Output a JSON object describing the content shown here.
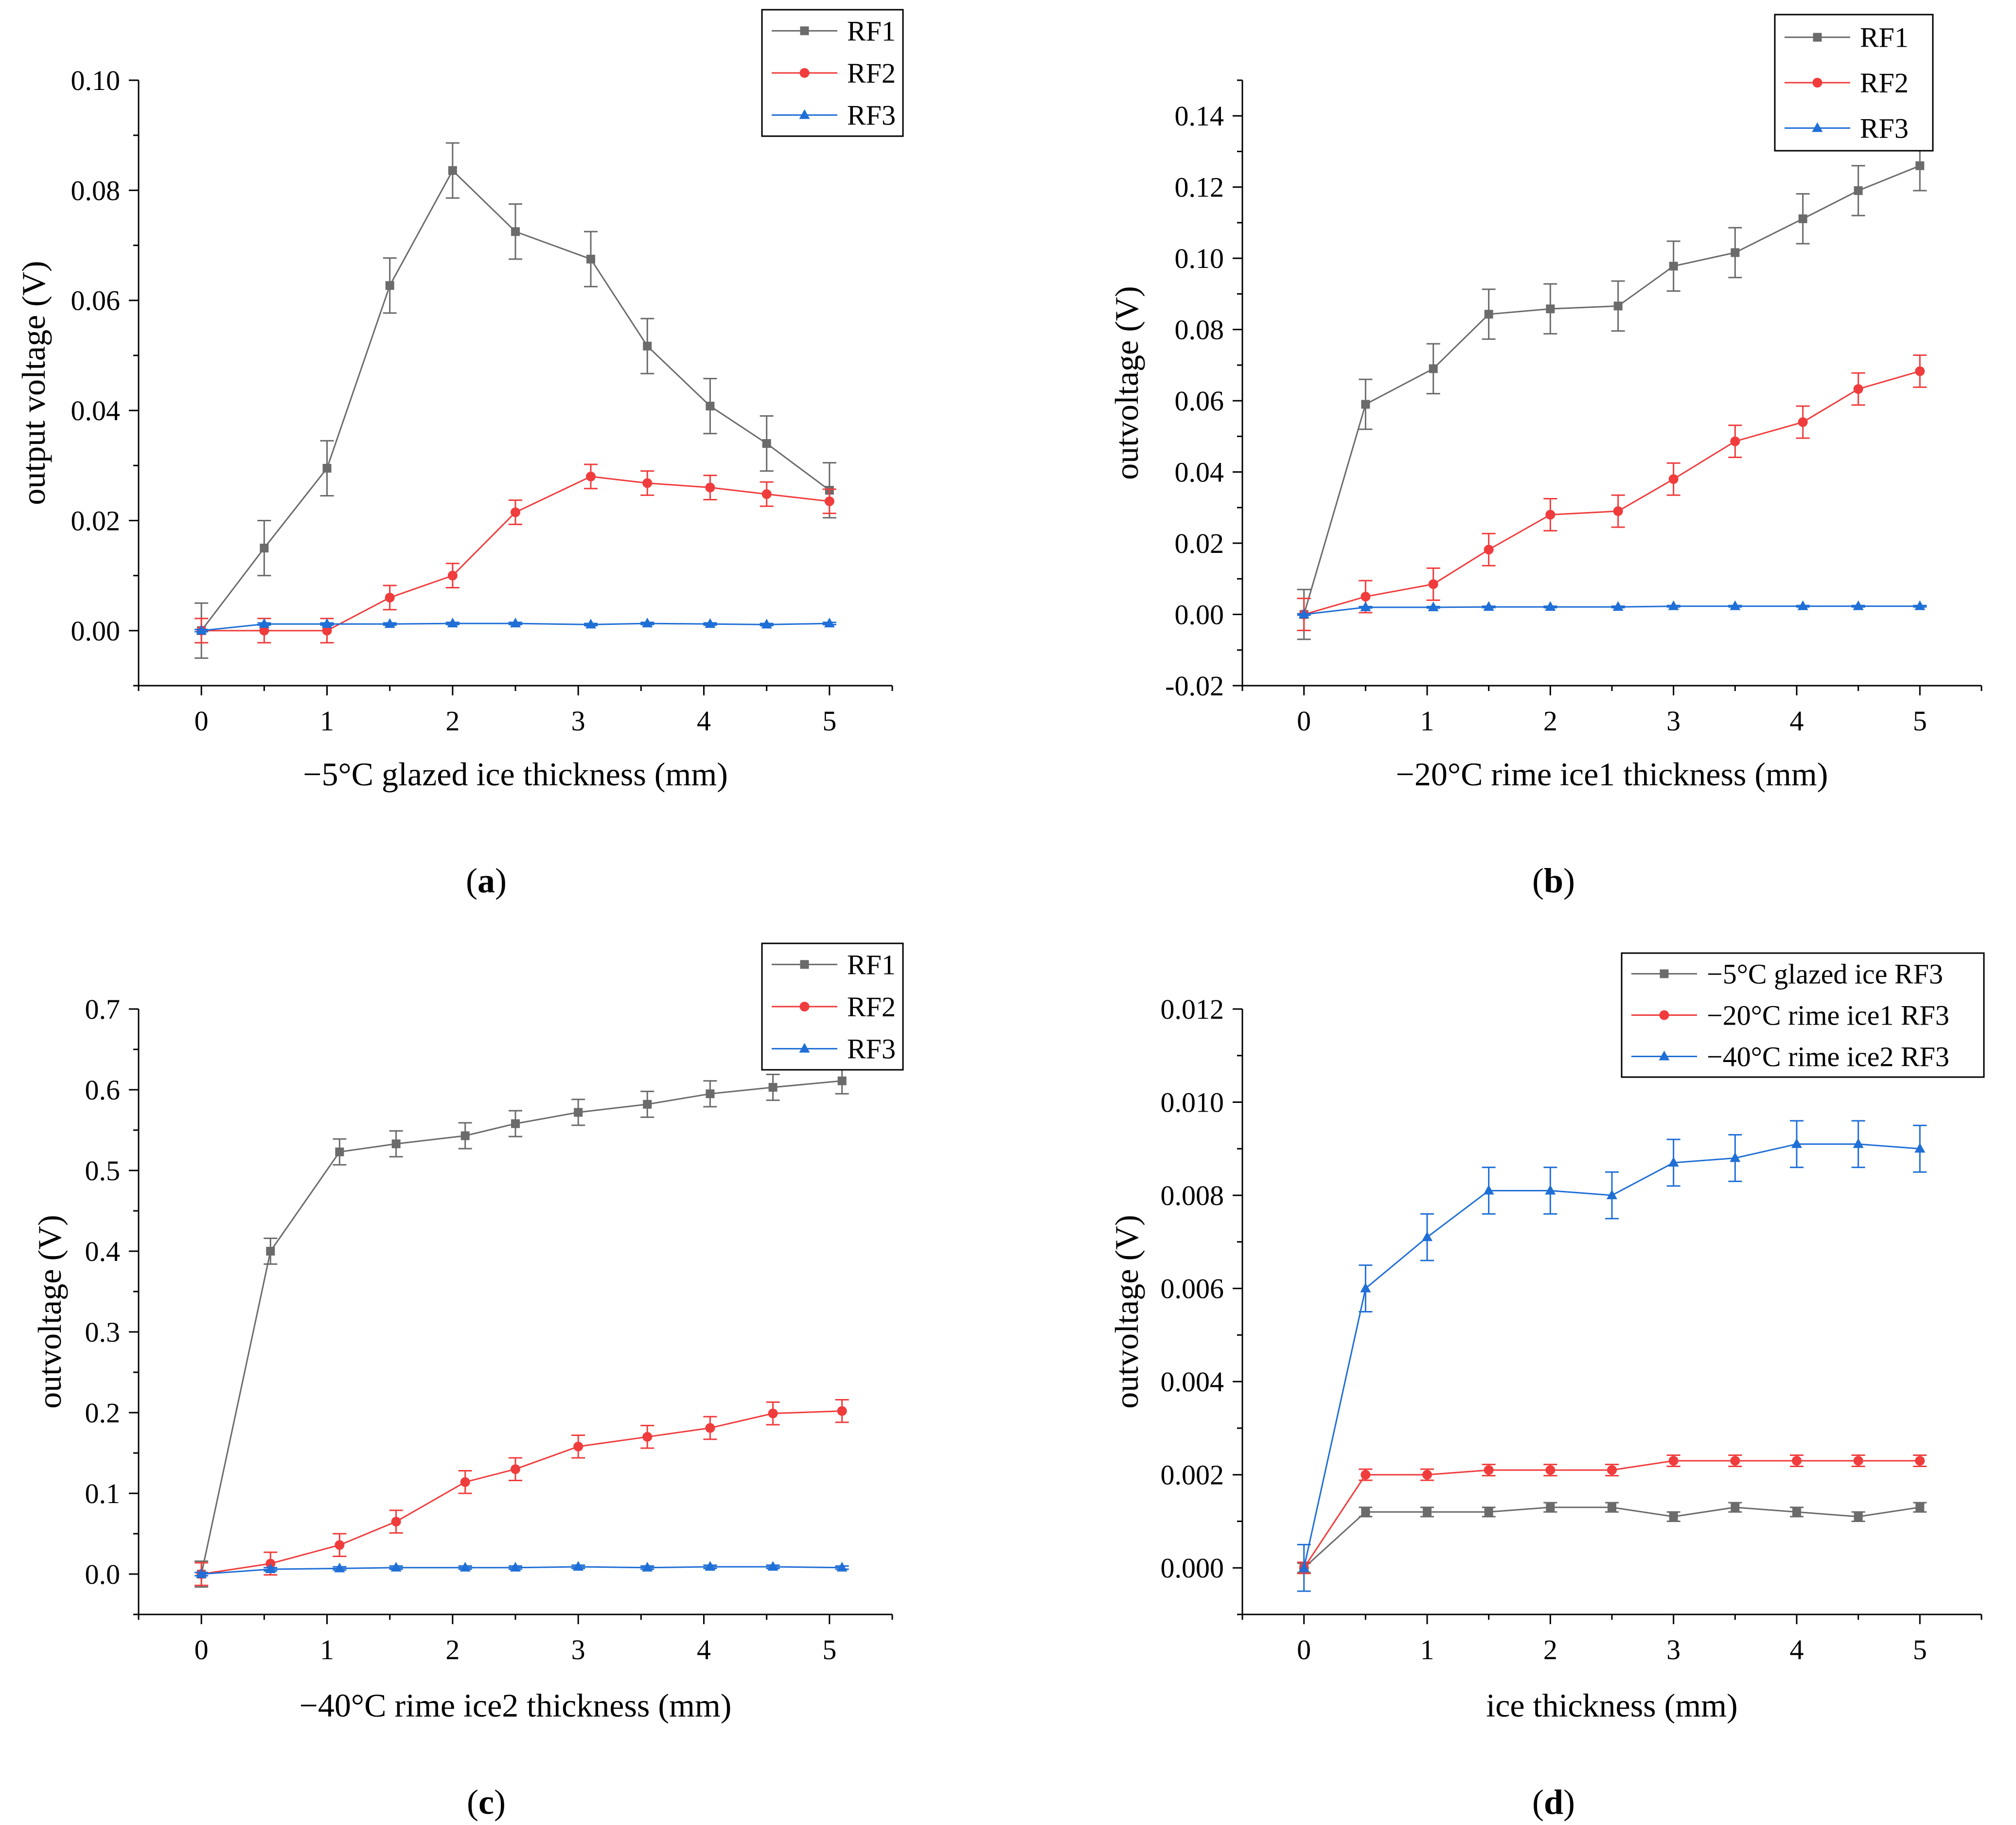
{
  "chart_data": [
    {
      "id": "a",
      "type": "line",
      "caption": "a",
      "xlabel": "−5°C glazed ice thickness (mm)",
      "ylabel": "output voltage (V)",
      "xlim": [
        -0.5,
        5.5
      ],
      "ylim": [
        -0.01,
        0.1
      ],
      "xticks": [
        0,
        1,
        2,
        3,
        4,
        5
      ],
      "xtick_labels": [
        "0",
        "1",
        "2",
        "3",
        "4",
        "5"
      ],
      "yticks": [
        0,
        0.02,
        0.04,
        0.06,
        0.08,
        0.1
      ],
      "ytick_labels": [
        "0.00",
        "0.02",
        "0.04",
        "0.06",
        "0.08",
        "0.10"
      ],
      "legend_position": "top-right",
      "series": [
        {
          "name": "RF1",
          "color": "#6b6b6b",
          "marker": "square",
          "x": [
            0,
            0.5,
            1,
            1.5,
            2,
            2.5,
            3.1,
            3.55,
            4.05,
            4.5,
            5
          ],
          "y": [
            0,
            0.015,
            0.0295,
            0.0627,
            0.0836,
            0.0725,
            0.0675,
            0.0517,
            0.0408,
            0.034,
            0.0255
          ],
          "err": [
            0.005,
            0.005,
            0.005,
            0.005,
            0.005,
            0.005,
            0.005,
            0.005,
            0.005,
            0.005,
            0.005
          ]
        },
        {
          "name": "RF2",
          "color": "#f03c3c",
          "marker": "circle",
          "x": [
            0,
            0.5,
            1,
            1.5,
            2,
            2.5,
            3.1,
            3.55,
            4.05,
            4.5,
            5
          ],
          "y": [
            0,
            0,
            0,
            0.006,
            0.01,
            0.0215,
            0.028,
            0.0268,
            0.026,
            0.0248,
            0.0235
          ],
          "err": [
            0.0022,
            0.0022,
            0.0022,
            0.0022,
            0.0022,
            0.0022,
            0.0022,
            0.0022,
            0.0022,
            0.0022,
            0.0022
          ]
        },
        {
          "name": "RF3",
          "color": "#1f6fd6",
          "marker": "triangle",
          "x": [
            0,
            0.5,
            1,
            1.5,
            2,
            2.5,
            3.1,
            3.55,
            4.05,
            4.5,
            5
          ],
          "y": [
            0,
            0.0012,
            0.0012,
            0.0012,
            0.0013,
            0.0013,
            0.0011,
            0.0013,
            0.0012,
            0.0011,
            0.0013
          ],
          "err": [
            0.0002,
            0.0002,
            0.0002,
            0.0002,
            0.0002,
            0.0002,
            0.0002,
            0.0002,
            0.0002,
            0.0002,
            0.0002
          ]
        }
      ]
    },
    {
      "id": "b",
      "type": "line",
      "caption": "b",
      "xlabel": "−20°C rime ice1 thickness (mm)",
      "ylabel": "outvoltage (V)",
      "xlim": [
        -0.5,
        5.5
      ],
      "ylim": [
        -0.02,
        0.15
      ],
      "xticks": [
        0,
        1,
        2,
        3,
        4,
        5
      ],
      "xtick_labels": [
        "0",
        "1",
        "2",
        "3",
        "4",
        "5"
      ],
      "yticks": [
        -0.02,
        0,
        0.02,
        0.04,
        0.06,
        0.08,
        0.1,
        0.12,
        0.14
      ],
      "ytick_labels": [
        "-0.02",
        "0.00",
        "0.02",
        "0.04",
        "0.06",
        "0.08",
        "0.10",
        "0.12",
        "0.14"
      ],
      "legend_position": "top-right",
      "series": [
        {
          "name": "RF1",
          "color": "#6b6b6b",
          "marker": "square",
          "x": [
            0,
            0.5,
            1.05,
            1.5,
            2,
            2.55,
            3,
            3.5,
            4.05,
            4.5,
            5
          ],
          "y": [
            0,
            0.059,
            0.069,
            0.0843,
            0.0858,
            0.0866,
            0.0978,
            0.1016,
            0.1111,
            0.119,
            0.126
          ],
          "err": [
            0.007,
            0.007,
            0.007,
            0.007,
            0.007,
            0.007,
            0.007,
            0.007,
            0.007,
            0.007,
            0.007
          ]
        },
        {
          "name": "RF2",
          "color": "#f03c3c",
          "marker": "circle",
          "x": [
            0,
            0.5,
            1.05,
            1.5,
            2,
            2.55,
            3,
            3.5,
            4.05,
            4.5,
            5
          ],
          "y": [
            0,
            0.005,
            0.0085,
            0.0182,
            0.028,
            0.029,
            0.038,
            0.0486,
            0.054,
            0.0633,
            0.0683
          ],
          "err": [
            0.0045,
            0.0045,
            0.0045,
            0.0045,
            0.0045,
            0.0045,
            0.0045,
            0.0045,
            0.0045,
            0.0045,
            0.0045
          ]
        },
        {
          "name": "RF3",
          "color": "#1f6fd6",
          "marker": "triangle",
          "x": [
            0,
            0.5,
            1.05,
            1.5,
            2,
            2.55,
            3,
            3.5,
            4.05,
            4.5,
            5
          ],
          "y": [
            0,
            0.002,
            0.002,
            0.0021,
            0.0021,
            0.0021,
            0.0023,
            0.0023,
            0.0023,
            0.0023,
            0.0023
          ],
          "err": [
            0.0002,
            0.0002,
            0.0002,
            0.0002,
            0.0002,
            0.0002,
            0.0002,
            0.0002,
            0.0002,
            0.0002,
            0.0002
          ]
        }
      ]
    },
    {
      "id": "c",
      "type": "line",
      "caption": "c",
      "xlabel": "−40°C rime ice2 thickness (mm)",
      "ylabel": "outvoltage (V)",
      "xlim": [
        -0.5,
        5.5
      ],
      "ylim": [
        -0.05,
        0.7
      ],
      "xticks": [
        0,
        1,
        2,
        3,
        4,
        5
      ],
      "xtick_labels": [
        "0",
        "1",
        "2",
        "3",
        "4",
        "5"
      ],
      "yticks": [
        0,
        0.1,
        0.2,
        0.3,
        0.4,
        0.5,
        0.6,
        0.7
      ],
      "ytick_labels": [
        "0.0",
        "0.1",
        "0.2",
        "0.3",
        "0.4",
        "0.5",
        "0.6",
        "0.7"
      ],
      "legend_position": "top-right",
      "series": [
        {
          "name": "RF1",
          "color": "#6b6b6b",
          "marker": "square",
          "x": [
            0,
            0.55,
            1.1,
            1.55,
            2.1,
            2.5,
            3,
            3.55,
            4.05,
            4.55,
            5.1
          ],
          "y": [
            0,
            0.4,
            0.523,
            0.533,
            0.543,
            0.558,
            0.572,
            0.582,
            0.595,
            0.603,
            0.611
          ],
          "err": [
            0.016,
            0.016,
            0.016,
            0.016,
            0.016,
            0.016,
            0.016,
            0.016,
            0.016,
            0.016,
            0.016
          ]
        },
        {
          "name": "RF2",
          "color": "#f03c3c",
          "marker": "circle",
          "x": [
            0,
            0.55,
            1.1,
            1.55,
            2.1,
            2.5,
            3,
            3.55,
            4.05,
            4.55,
            5.1
          ],
          "y": [
            0,
            0.013,
            0.036,
            0.065,
            0.114,
            0.13,
            0.158,
            0.17,
            0.181,
            0.199,
            0.202
          ],
          "err": [
            0.014,
            0.014,
            0.014,
            0.014,
            0.014,
            0.014,
            0.014,
            0.014,
            0.014,
            0.014,
            0.014
          ]
        },
        {
          "name": "RF3",
          "color": "#1f6fd6",
          "marker": "triangle",
          "x": [
            0,
            0.55,
            1.1,
            1.55,
            2.1,
            2.5,
            3,
            3.55,
            4.05,
            4.55,
            5.1
          ],
          "y": [
            0,
            0.006,
            0.007,
            0.008,
            0.008,
            0.008,
            0.009,
            0.008,
            0.009,
            0.009,
            0.008
          ],
          "err": [
            0.002,
            0.002,
            0.002,
            0.002,
            0.002,
            0.002,
            0.002,
            0.002,
            0.002,
            0.002,
            0.002
          ]
        }
      ]
    },
    {
      "id": "d",
      "type": "line",
      "caption": "d",
      "xlabel": "ice thickness (mm)",
      "ylabel": "outvoltage (V)",
      "xlim": [
        -0.5,
        5.5
      ],
      "ylim": [
        -0.001,
        0.012
      ],
      "xticks": [
        0,
        1,
        2,
        3,
        4,
        5
      ],
      "xtick_labels": [
        "0",
        "1",
        "2",
        "3",
        "4",
        "5"
      ],
      "yticks": [
        0,
        0.002,
        0.004,
        0.006,
        0.008,
        0.01,
        0.012
      ],
      "ytick_labels": [
        "0.000",
        "0.002",
        "0.004",
        "0.006",
        "0.008",
        "0.010",
        "0.012"
      ],
      "legend_position": "top-right",
      "series": [
        {
          "name": "−5°C glazed ice RF3",
          "color": "#6b6b6b",
          "marker": "square",
          "x": [
            0,
            0.5,
            1,
            1.5,
            2,
            2.5,
            3,
            3.5,
            4,
            4.5,
            5
          ],
          "y": [
            0,
            0.0012,
            0.0012,
            0.0012,
            0.0013,
            0.0013,
            0.0011,
            0.0013,
            0.0012,
            0.0011,
            0.0013
          ],
          "err": [
            0.0001,
            0.0001,
            0.0001,
            0.0001,
            0.0001,
            0.0001,
            0.0001,
            0.0001,
            0.0001,
            0.0001,
            0.0001
          ]
        },
        {
          "name": "−20°C rime ice1 RF3",
          "color": "#f03c3c",
          "marker": "circle",
          "x": [
            0,
            0.5,
            1,
            1.5,
            2,
            2.5,
            3,
            3.5,
            4,
            4.5,
            5
          ],
          "y": [
            0,
            0.002,
            0.002,
            0.0021,
            0.0021,
            0.0021,
            0.0023,
            0.0023,
            0.0023,
            0.0023,
            0.0023
          ],
          "err": [
            0.00012,
            0.00012,
            0.00012,
            0.00012,
            0.00012,
            0.00012,
            0.00012,
            0.00012,
            0.00012,
            0.00012,
            0.00012
          ]
        },
        {
          "name": "−40°C rime ice2 RF3",
          "color": "#1f6fd6",
          "marker": "triangle",
          "x": [
            0,
            0.5,
            1,
            1.5,
            2,
            2.5,
            3,
            3.5,
            4,
            4.5,
            5
          ],
          "y": [
            0,
            0.006,
            0.0071,
            0.0081,
            0.0081,
            0.008,
            0.0087,
            0.0088,
            0.0091,
            0.0091,
            0.009
          ],
          "err": [
            0.0005,
            0.0005,
            0.0005,
            0.0005,
            0.0005,
            0.0005,
            0.0005,
            0.0005,
            0.0005,
            0.0005,
            0.0005
          ]
        }
      ]
    }
  ]
}
